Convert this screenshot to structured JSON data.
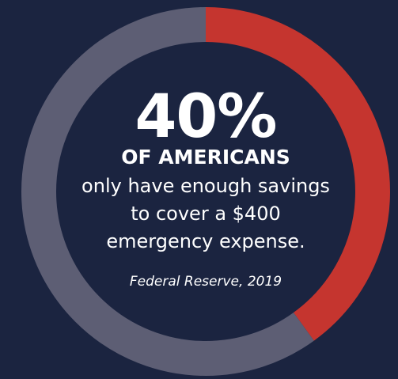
{
  "colors": {
    "background": "#1b2440",
    "highlight": "#c5352f",
    "remainder": "#5d5e74",
    "text": "#ffffff"
  },
  "chart_data": {
    "type": "pie",
    "style": "donut",
    "slices": [
      {
        "value": 40,
        "color": "#c5352f"
      },
      {
        "value": 60,
        "color": "#5d5e74"
      }
    ]
  },
  "center": {
    "percent": "40%",
    "headline": "OF AMERICANS",
    "body": "only have enough savings to cover a $400 emergency expense.",
    "source": "Federal Reserve, 2019"
  }
}
